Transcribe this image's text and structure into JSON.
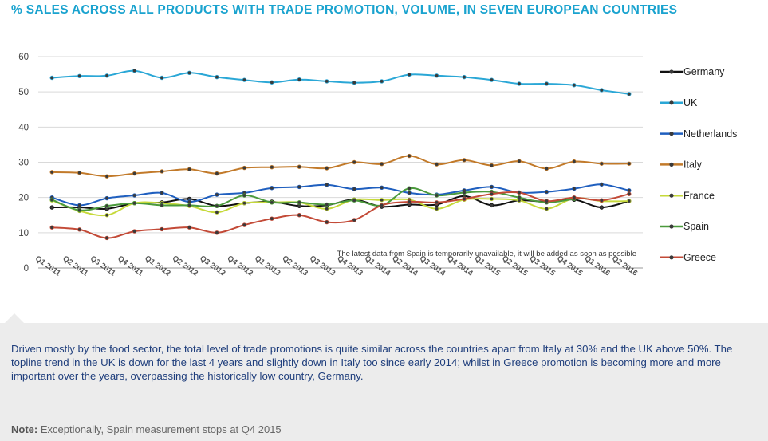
{
  "title": "% SALES ACROSS ALL PRODUCTS WITH TRADE PROMOTION, VOLUME, IN SEVEN EUROPEAN COUNTRIES",
  "description": "Driven mostly by the food sector, the total level of trade promotions is quite similar across the countries apart from Italy at 30% and the UK above 50%. The topline trend in the UK is down for the last 4 years and slightly down in Italy too since early 2014; whilst in Greece promotion is becoming more and more important over the years, overpassing the historically low country, Germany.",
  "note_label": "Note:",
  "note_text": " Exceptionally, Spain measurement stops at Q4 2015",
  "chart_data": {
    "type": "line",
    "categories": [
      "Q1 2011",
      "Q2 2011",
      "Q3 2011",
      "Q4 2011",
      "Q1 2012",
      "Q2 2012",
      "Q3 2012",
      "Q4 2012",
      "Q1 2013",
      "Q2 2013",
      "Q3 2013",
      "Q4 2013",
      "Q1 2014",
      "Q2 2014",
      "Q3 2014",
      "Q4 2014",
      "Q1 2015",
      "Q2 2015",
      "Q3 2015",
      "Q4 2015",
      "Q1 2016",
      "Q2 2016"
    ],
    "ylim": [
      0,
      60
    ],
    "yticks": [
      0,
      10,
      20,
      30,
      40,
      50,
      60
    ],
    "grid": true,
    "legend_position": "right",
    "annotation": "The latest data from Spain is temporarily unavailable, it will be added as soon as possible",
    "series": [
      {
        "name": "Germany",
        "color": "#111111",
        "values": [
          17.2,
          17.2,
          16.8,
          18.4,
          18.6,
          19.6,
          17.6,
          18.4,
          18.8,
          17.6,
          17.8,
          19.4,
          17.4,
          18.0,
          18.0,
          20.4,
          17.8,
          19.2,
          18.8,
          19.4,
          17.2,
          19.0
        ]
      },
      {
        "name": "UK",
        "color": "#2aa7d6",
        "values": [
          54.0,
          54.5,
          54.6,
          56.0,
          54.0,
          55.4,
          54.2,
          53.4,
          52.7,
          53.5,
          53.0,
          52.6,
          53.0,
          54.9,
          54.6,
          54.2,
          53.4,
          52.3,
          52.3,
          51.9,
          50.5,
          49.4
        ]
      },
      {
        "name": "Netherlands",
        "color": "#1f5fbf",
        "values": [
          20.0,
          17.8,
          19.8,
          20.6,
          21.3,
          18.8,
          20.8,
          21.3,
          22.7,
          23.0,
          23.6,
          22.4,
          22.8,
          21.3,
          20.8,
          22.0,
          23.0,
          21.4,
          21.6,
          22.5,
          23.7,
          22.0
        ]
      },
      {
        "name": "Italy",
        "color": "#c27a2a",
        "values": [
          27.2,
          27.0,
          26.0,
          26.8,
          27.4,
          28.0,
          26.8,
          28.4,
          28.6,
          28.7,
          28.3,
          30.0,
          29.5,
          31.8,
          29.4,
          30.6,
          29.1,
          30.3,
          28.2,
          30.2,
          29.6,
          29.6
        ]
      },
      {
        "name": "France",
        "color": "#c6d93a",
        "values": [
          19.2,
          16.2,
          15.0,
          18.4,
          18.4,
          17.6,
          15.8,
          18.4,
          18.6,
          18.6,
          16.8,
          19.4,
          19.3,
          19.4,
          16.8,
          19.4,
          19.6,
          19.2,
          16.8,
          19.8,
          19.0,
          19.0
        ]
      },
      {
        "name": "Spain",
        "color": "#4b9a3c",
        "values": [
          19.4,
          16.4,
          17.6,
          18.4,
          17.8,
          17.8,
          17.6,
          20.6,
          18.6,
          18.6,
          18.0,
          19.2,
          17.8,
          22.6,
          20.6,
          21.4,
          21.6,
          20.0,
          18.6,
          19.6,
          null,
          null
        ]
      },
      {
        "name": "Greece",
        "color": "#c34a37",
        "values": [
          11.5,
          10.9,
          8.5,
          10.4,
          11.0,
          11.5,
          10.0,
          12.2,
          14.0,
          15.0,
          13.0,
          13.6,
          17.8,
          18.8,
          18.6,
          19.6,
          21.0,
          21.4,
          19.0,
          20.0,
          19.2,
          21.0
        ]
      }
    ]
  }
}
